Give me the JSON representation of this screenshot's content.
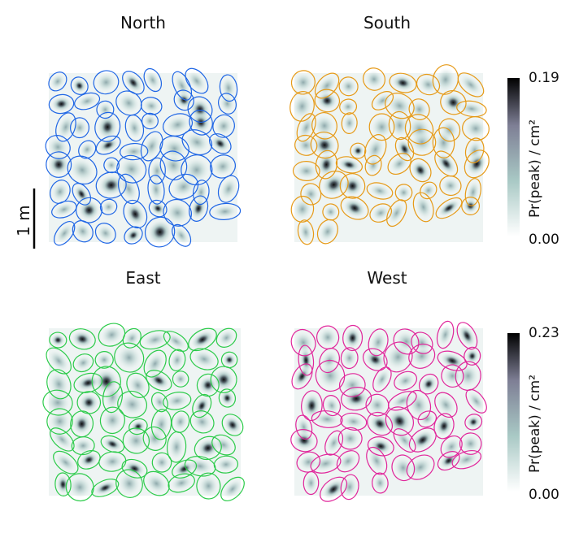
{
  "chart_data": [
    {
      "type": "heatmap",
      "title": "North",
      "ellipse_color": "#1f66e5",
      "color_scale_id": 0,
      "n_fields": 62,
      "seed": 11
    },
    {
      "type": "heatmap",
      "title": "South",
      "ellipse_color": "#e69a17",
      "color_scale_id": 0,
      "n_fields": 58,
      "seed": 23
    },
    {
      "type": "heatmap",
      "title": "East",
      "ellipse_color": "#2ccb4a",
      "color_scale_id": 1,
      "n_fields": 64,
      "seed": 37
    },
    {
      "type": "heatmap",
      "title": "West",
      "ellipse_color": "#e0269b",
      "color_scale_id": 1,
      "n_fields": 60,
      "seed": 51
    }
  ],
  "colorbars": [
    {
      "label": "Pr(peak) / cm²",
      "min_label": "0.00",
      "max_label": "0.19",
      "min": 0.0,
      "max": 0.19
    },
    {
      "label": "Pr(peak) / cm²",
      "min_label": "0.00",
      "max_label": "0.23",
      "min": 0.0,
      "max": 0.23
    }
  ],
  "colormap": [
    "#ffffff",
    "#a9c9c5",
    "#7e7f95",
    "#000000"
  ],
  "scale_bar": {
    "label": "1 m"
  }
}
